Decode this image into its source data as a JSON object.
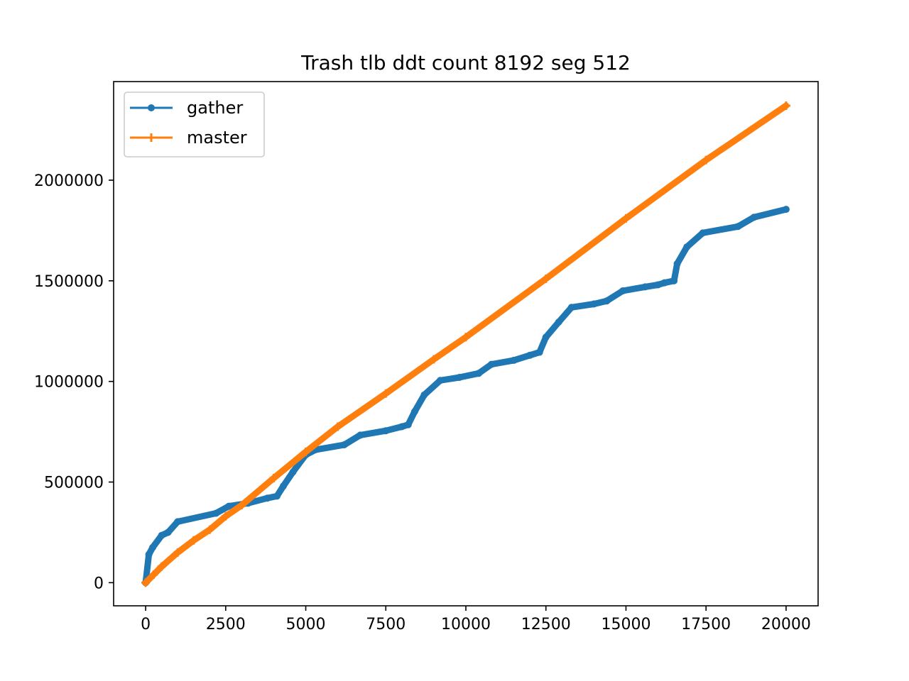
{
  "chart_data": {
    "type": "line",
    "title": "Trash tlb ddt count 8192 seg 512",
    "xlabel": "",
    "ylabel": "",
    "xlim": [
      -1000,
      21000
    ],
    "ylim": [
      -115000,
      2490000
    ],
    "x_ticks": [
      0,
      2500,
      5000,
      7500,
      10000,
      12500,
      15000,
      17500,
      20000
    ],
    "x_tick_labels": [
      "0",
      "2500",
      "5000",
      "7500",
      "10000",
      "12500",
      "15000",
      "17500",
      "20000"
    ],
    "y_ticks": [
      0,
      500000,
      1000000,
      1500000,
      2000000
    ],
    "y_tick_labels": [
      "0",
      "500000",
      "1000000",
      "1500000",
      "2000000"
    ],
    "grid": false,
    "legend_position": "upper left",
    "series": [
      {
        "name": "gather",
        "color": "#1f77b4",
        "marker": "dot",
        "x": [
          0,
          100,
          220,
          500,
          700,
          1000,
          2200,
          2600,
          3200,
          3800,
          4100,
          4300,
          4600,
          5000,
          5300,
          6200,
          6700,
          7500,
          8000,
          8200,
          8400,
          8700,
          9200,
          9800,
          10400,
          10800,
          11500,
          12000,
          12300,
          12500,
          12900,
          13300,
          14000,
          14400,
          14900,
          15600,
          16000,
          16200,
          16500,
          16600,
          16900,
          17400,
          18500,
          19000,
          20000
        ],
        "y": [
          0,
          140000,
          175000,
          235000,
          250000,
          303000,
          345000,
          380000,
          395000,
          420000,
          430000,
          480000,
          550000,
          635000,
          660000,
          685000,
          733000,
          755000,
          775000,
          785000,
          850000,
          933000,
          1005000,
          1020000,
          1040000,
          1085000,
          1105000,
          1130000,
          1145000,
          1220000,
          1295000,
          1368000,
          1385000,
          1400000,
          1450000,
          1470000,
          1480000,
          1490000,
          1500000,
          1585000,
          1668000,
          1738000,
          1770000,
          1816000,
          1855000
        ]
      },
      {
        "name": "master",
        "color": "#ff7f0e",
        "marker": "plus",
        "x": [
          0,
          250,
          500,
          1000,
          1500,
          2000,
          2500,
          3000,
          4000,
          5000,
          6000,
          7500,
          9000,
          10000,
          12500,
          15000,
          17500,
          20000
        ],
        "y": [
          0,
          40000,
          80000,
          150000,
          210000,
          263000,
          330000,
          385000,
          520000,
          650000,
          775000,
          940000,
          1110000,
          1220000,
          1510000,
          1810000,
          2100000,
          2370000
        ]
      }
    ]
  }
}
